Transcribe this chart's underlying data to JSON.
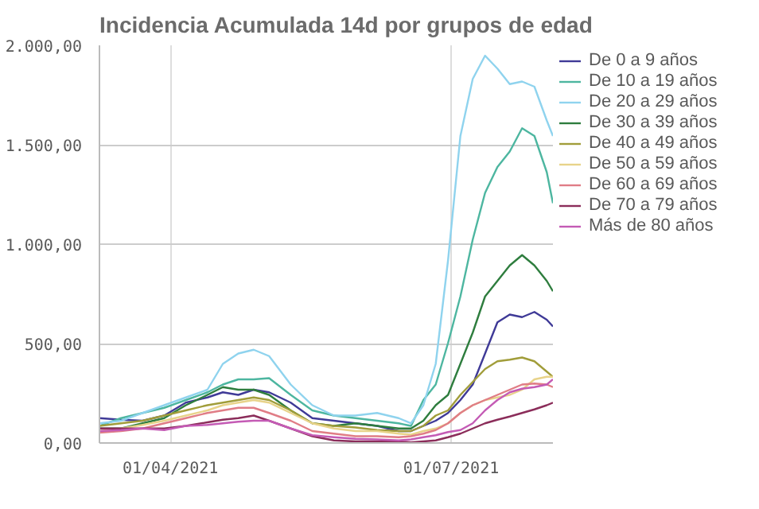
{
  "chart_data": {
    "type": "line",
    "title": "Incidencia Acumulada 14d por grupos de edad",
    "x": [
      "2021-03-09",
      "2021-03-16",
      "2021-03-23",
      "2021-03-30",
      "2021-04-06",
      "2021-04-13",
      "2021-04-18",
      "2021-04-23",
      "2021-04-28",
      "2021-05-03",
      "2021-05-10",
      "2021-05-17",
      "2021-05-24",
      "2021-05-31",
      "2021-06-07",
      "2021-06-14",
      "2021-06-18",
      "2021-06-22",
      "2021-06-26",
      "2021-06-30",
      "2021-07-04",
      "2021-07-08",
      "2021-07-12",
      "2021-07-16",
      "2021-07-20",
      "2021-07-24",
      "2021-07-28",
      "2021-08-01",
      "2021-08-03"
    ],
    "xlim": [
      "2021-03-09",
      "2021-08-03"
    ],
    "xticks": [
      {
        "value": "2021-04-01",
        "label": "01/04/2021"
      },
      {
        "value": "2021-07-01",
        "label": "01/07/2021"
      }
    ],
    "ylim": [
      0,
      2000
    ],
    "yticks": [
      {
        "value": 0,
        "label": "0,00"
      },
      {
        "value": 500,
        "label": "500,00"
      },
      {
        "value": 1000,
        "label": "1.000,00"
      },
      {
        "value": 1500,
        "label": "1.500,00"
      },
      {
        "value": 2000,
        "label": "2.000,00"
      }
    ],
    "grid": true,
    "legend": "right",
    "marker": "none",
    "line_style": "solid",
    "series": [
      {
        "name": "De 0 a 9 años",
        "color": "#3f3a97",
        "values": [
          125,
          117,
          112,
          138,
          203,
          229,
          255,
          242,
          268,
          255,
          203,
          125,
          112,
          99,
          86,
          60,
          60,
          86,
          112,
          151,
          216,
          294,
          450,
          607,
          646,
          633,
          659,
          620,
          586
        ]
      },
      {
        "name": "De 10 a 19 años",
        "color": "#4db6a0",
        "values": [
          86,
          125,
          151,
          177,
          216,
          255,
          294,
          320,
          320,
          326,
          242,
          164,
          138,
          125,
          112,
          99,
          86,
          216,
          294,
          503,
          737,
          1023,
          1258,
          1388,
          1466,
          1583,
          1544,
          1362,
          1206
        ]
      },
      {
        "name": "De 20 a 29 años",
        "color": "#8fd3ee",
        "values": [
          99,
          112,
          151,
          190,
          229,
          268,
          398,
          450,
          469,
          437,
          294,
          190,
          138,
          138,
          151,
          125,
          99,
          190,
          398,
          919,
          1544,
          1831,
          1948,
          1883,
          1805,
          1818,
          1792,
          1622,
          1544
        ]
      },
      {
        "name": "De 30 a 39 años",
        "color": "#2e7d3e",
        "values": [
          73,
          73,
          99,
          125,
          190,
          242,
          281,
          268,
          268,
          242,
          164,
          99,
          86,
          99,
          86,
          73,
          73,
          112,
          190,
          242,
          398,
          555,
          737,
          815,
          893,
          945,
          893,
          815,
          763
        ]
      },
      {
        "name": "De 40 a 49 años",
        "color": "#a19d3a",
        "values": [
          86,
          99,
          112,
          138,
          164,
          190,
          203,
          216,
          229,
          216,
          164,
          99,
          86,
          78,
          65,
          60,
          60,
          86,
          138,
          164,
          242,
          307,
          372,
          411,
          419,
          430,
          411,
          359,
          333
        ]
      },
      {
        "name": "De 50 a 59 años",
        "color": "#e8d38a",
        "values": [
          60,
          73,
          91,
          112,
          138,
          164,
          190,
          203,
          216,
          203,
          151,
          99,
          73,
          60,
          60,
          47,
          42,
          60,
          73,
          99,
          151,
          190,
          216,
          229,
          242,
          268,
          320,
          333,
          333
        ]
      },
      {
        "name": "De 60 a 69 años",
        "color": "#e07d86",
        "values": [
          52,
          60,
          73,
          99,
          125,
          151,
          164,
          177,
          177,
          151,
          112,
          60,
          47,
          34,
          34,
          29,
          34,
          47,
          65,
          99,
          151,
          190,
          216,
          242,
          268,
          294,
          299,
          294,
          281
        ]
      },
      {
        "name": "De 70 a 79 años",
        "color": "#8b2d5a",
        "values": [
          73,
          73,
          73,
          73,
          86,
          104,
          117,
          125,
          138,
          112,
          73,
          34,
          13,
          8,
          8,
          8,
          3,
          8,
          13,
          29,
          47,
          73,
          99,
          117,
          133,
          151,
          169,
          190,
          203
        ]
      },
      {
        "name": "Más de 80 años",
        "color": "#c45bb5",
        "values": [
          60,
          65,
          73,
          65,
          86,
          91,
          99,
          107,
          112,
          112,
          73,
          39,
          29,
          21,
          18,
          13,
          18,
          29,
          39,
          55,
          65,
          99,
          164,
          216,
          255,
          273,
          281,
          294,
          320
        ]
      }
    ]
  }
}
